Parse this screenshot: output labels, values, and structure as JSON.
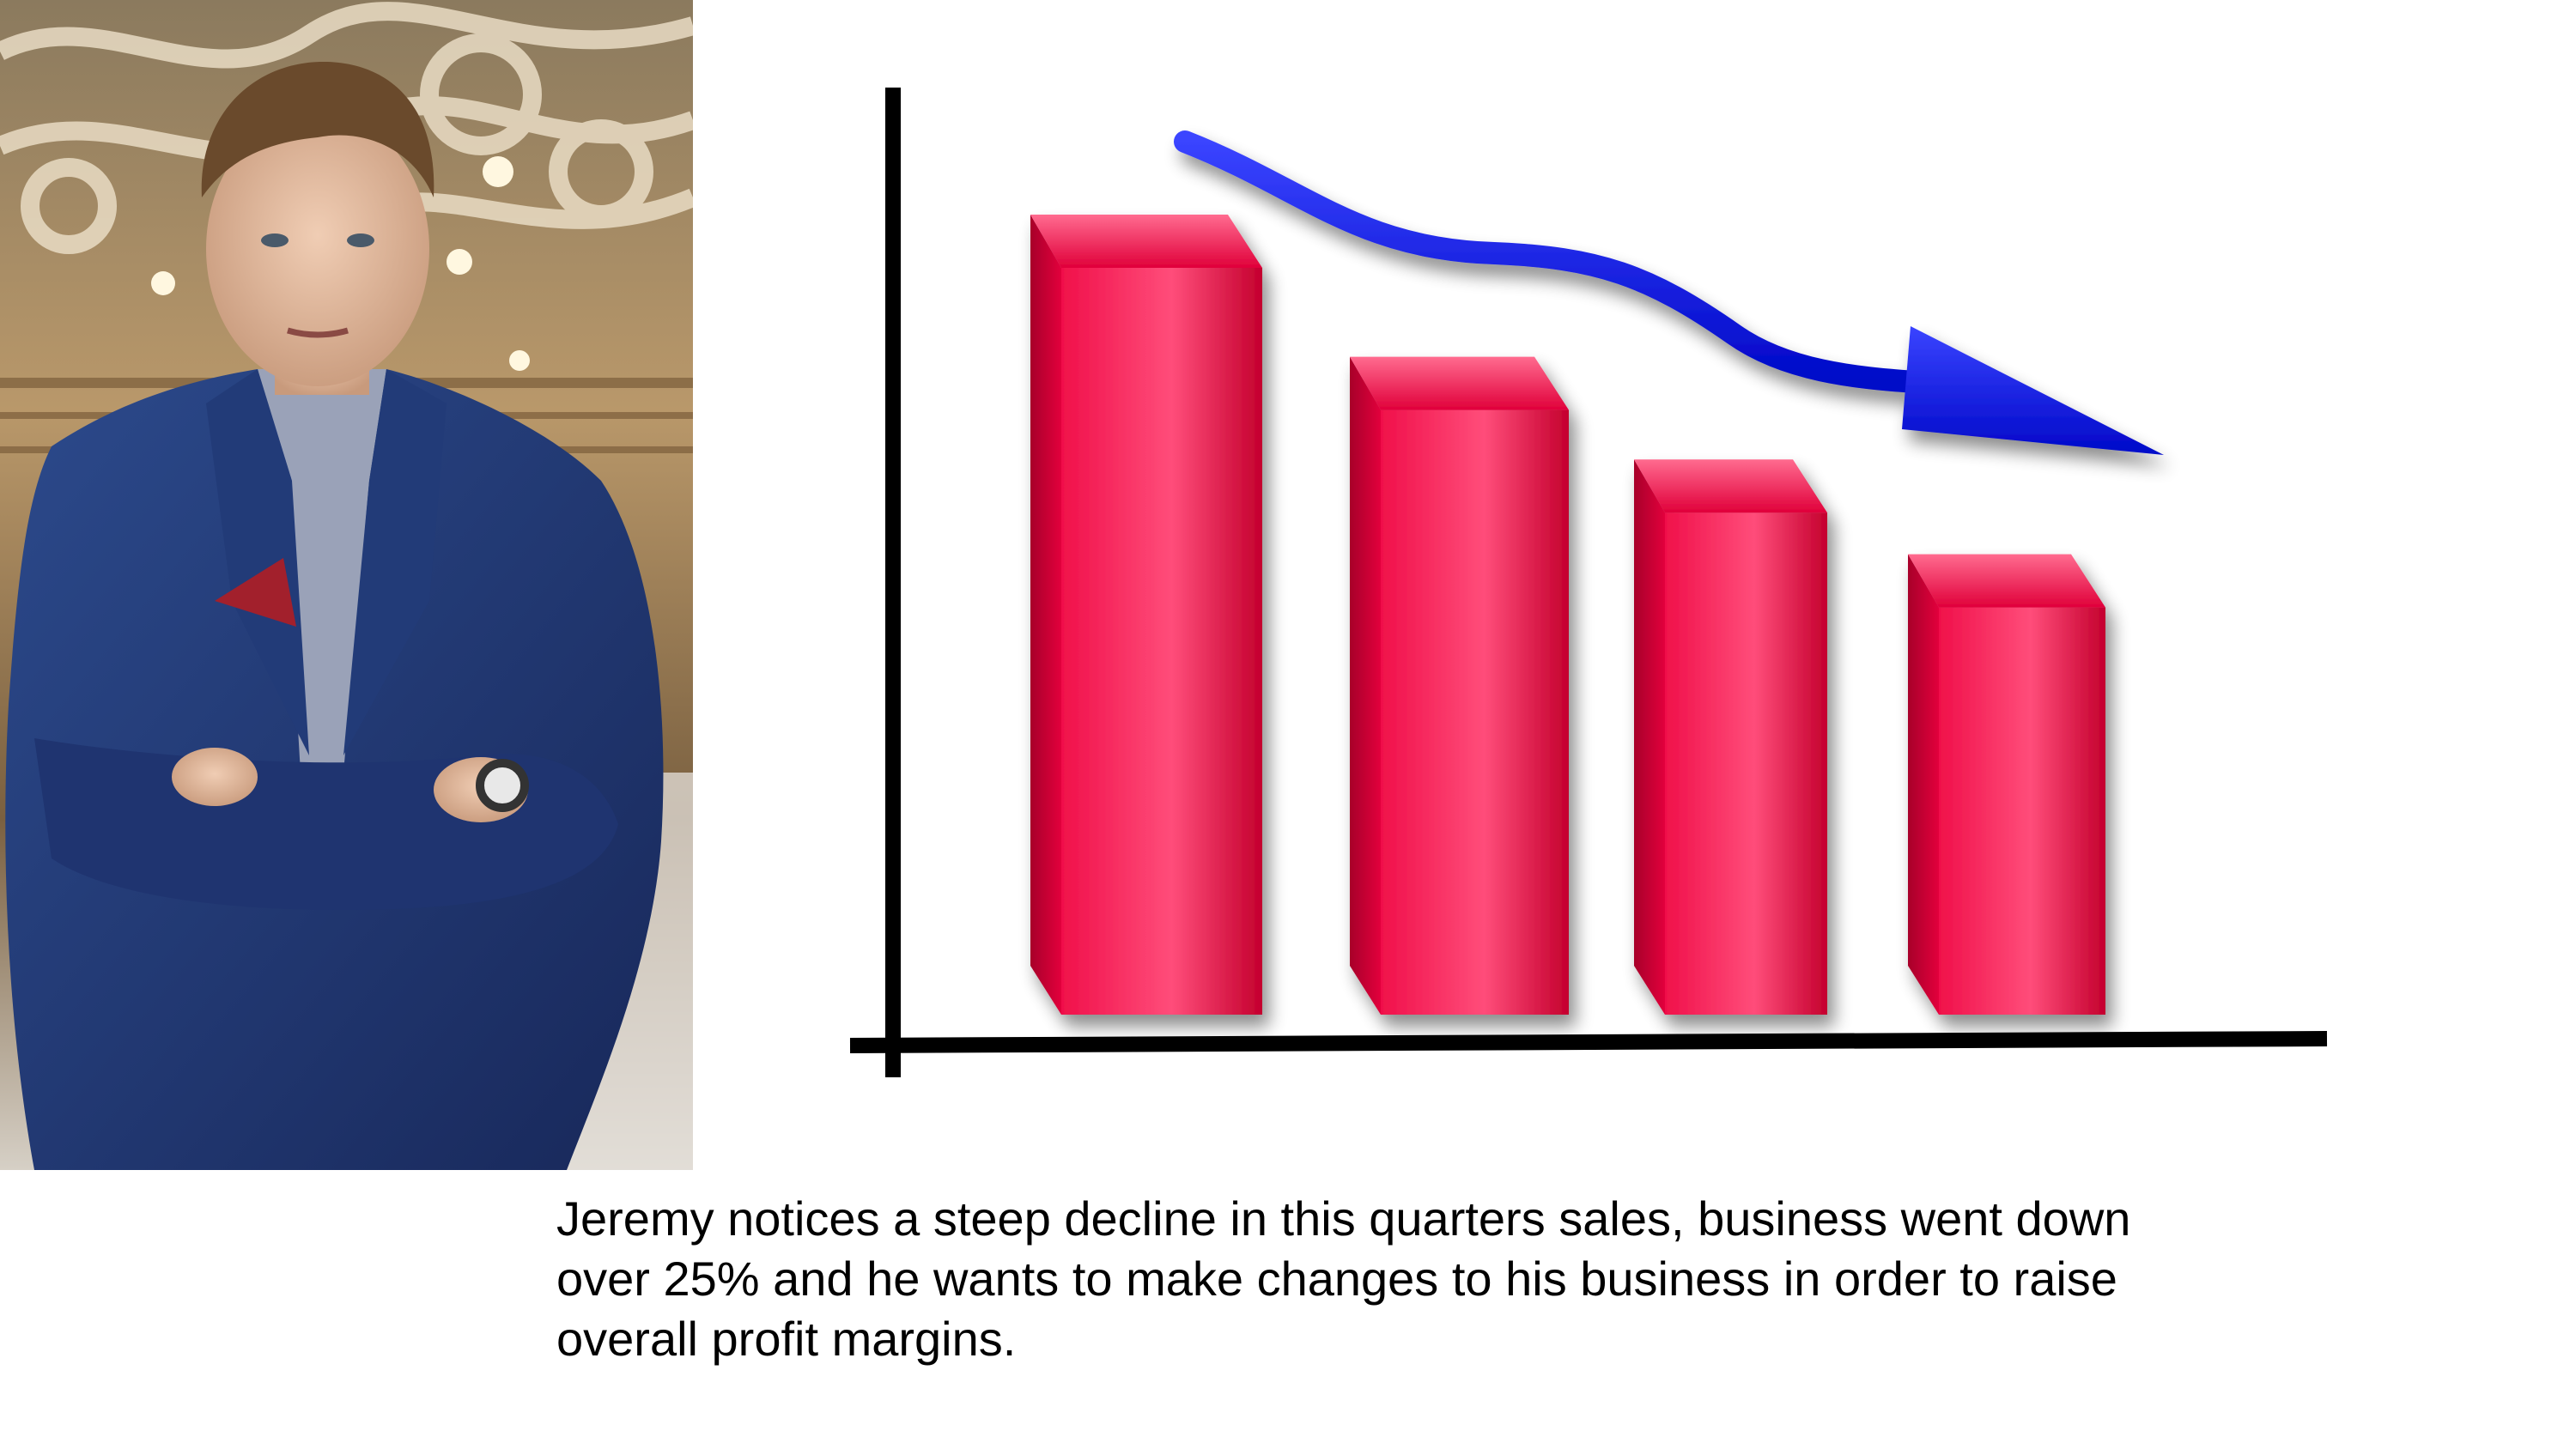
{
  "photo": {
    "subject": "man-in-blue-suit-arms-crossed"
  },
  "chart_data": {
    "type": "bar",
    "categories": [
      "",
      "",
      "",
      ""
    ],
    "values": [
      100,
      82,
      69,
      57
    ],
    "ylim": [
      0,
      100
    ],
    "grid": false,
    "trend_arrow": "downward",
    "colors": {
      "bar": "#e8003c",
      "arrow": "#0a14ff",
      "axis": "#000000"
    }
  },
  "caption": {
    "lines": [
      "Jeremy notices a steep decline in this quarters sales, business went down",
      "over 25% and he wants to make changes to his business in order to raise",
      "overall profit margins."
    ]
  }
}
